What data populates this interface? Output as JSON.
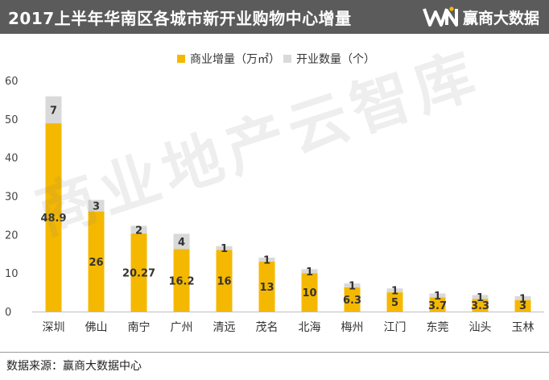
{
  "header": {
    "title": "2017上半年华南区各城市新开业购物中心增量",
    "brand_name": "赢商大数据"
  },
  "footer": {
    "source": "数据来源：赢商大数据中心"
  },
  "watermark": "商业地产云智库",
  "colors": {
    "header_bg": "#5b5b5b",
    "area_bar": "#f5b800",
    "count_bar": "#d9d9d9",
    "label_dark": "#333333"
  },
  "chart_data": {
    "type": "bar",
    "stacked": true,
    "categories": [
      "深圳",
      "佛山",
      "南宁",
      "广州",
      "清远",
      "茂名",
      "北海",
      "梅州",
      "江门",
      "东莞",
      "汕头",
      "玉林"
    ],
    "series": [
      {
        "name": "商业增量（万㎡）",
        "values": [
          48.9,
          26,
          20.27,
          16.2,
          16,
          13,
          10,
          6.3,
          5,
          3.7,
          3.3,
          3
        ],
        "labels": [
          "48.9",
          "26",
          "20.27",
          "16.2",
          "16",
          "13",
          "10",
          "6.3",
          "5",
          "3.7",
          "3.3",
          "3"
        ]
      },
      {
        "name": "开业数量（个）",
        "values": [
          7,
          3,
          2,
          4,
          1,
          1,
          1,
          1,
          1,
          1,
          1,
          1
        ],
        "labels": [
          "7",
          "3",
          "2",
          "4",
          "1",
          "1",
          "1",
          "1",
          "1",
          "1",
          "1",
          "1"
        ]
      }
    ],
    "ylim": [
      0,
      60
    ],
    "yticks": [
      "0",
      "10",
      "20",
      "30",
      "40",
      "50",
      "60"
    ],
    "grid": false,
    "legend": "top-center"
  }
}
